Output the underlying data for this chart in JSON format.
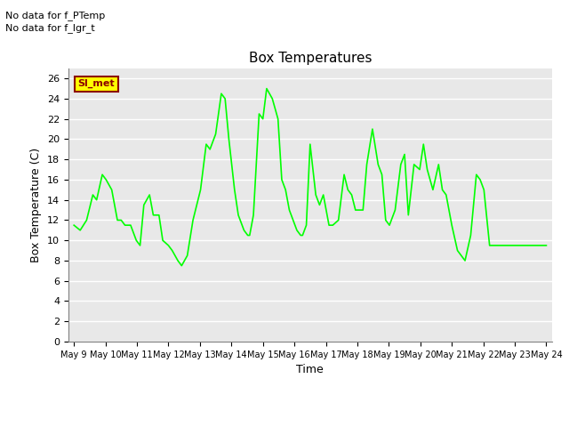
{
  "title": "Box Temperatures",
  "xlabel": "Time",
  "ylabel": "Box Temperature (C)",
  "line_color": "#00FF00",
  "bg_color": "#E8E8E8",
  "annotation1": "No data for f_PTemp",
  "annotation2": "No data for f_lgr_t",
  "sl_met_label": "Sl_met",
  "x_tick_labels": [
    "May 9",
    "May 10",
    "May 11",
    "May 12",
    "May 13",
    "May 14",
    "May 15",
    "May 16",
    "May 17",
    "May 18",
    "May 19",
    "May 20",
    "May 21",
    "May 22",
    "May 23",
    "May 24"
  ],
  "x_values": [
    0.0,
    0.33,
    0.67,
    1.0,
    1.2,
    1.5,
    1.7,
    2.0,
    2.3,
    2.5,
    2.7,
    3.0,
    3.3,
    3.5,
    3.7,
    4.0,
    4.2,
    4.5,
    4.7,
    5.0,
    5.2,
    5.5,
    5.7,
    6.0,
    6.3,
    6.7,
    7.0,
    7.2,
    7.5,
    7.8,
    8.0,
    8.2,
    8.5,
    8.7,
    9.0,
    9.2,
    9.3,
    9.5,
    9.8,
    10.0,
    10.2,
    10.5,
    10.8,
    11.0,
    11.2,
    11.4,
    11.6,
    11.8,
    12.0,
    12.1,
    12.3,
    12.5,
    12.8,
    13.0,
    13.2,
    13.5,
    13.7,
    14.0,
    14.3,
    14.5,
    14.7,
    14.9,
    15.1,
    15.3,
    15.5,
    15.8,
    16.1,
    16.3,
    16.5,
    16.7,
    17.0,
    17.3,
    17.5,
    17.7,
    18.0,
    18.3,
    18.5,
    18.7,
    19.0,
    19.3,
    19.5,
    19.7,
    20.0,
    20.3,
    20.5,
    20.7,
    21.0,
    21.3,
    21.5,
    21.7,
    22.0,
    22.3,
    22.7,
    23.0,
    23.3,
    23.7,
    24.0,
    24.3,
    24.7,
    25.0
  ],
  "y_values": [
    11.5,
    11.0,
    12.0,
    14.5,
    14.0,
    16.5,
    16.0,
    15.0,
    12.0,
    12.0,
    11.5,
    11.5,
    10.0,
    9.5,
    13.5,
    14.5,
    12.5,
    12.5,
    10.0,
    9.5,
    9.0,
    8.0,
    7.5,
    8.5,
    12.0,
    15.0,
    19.5,
    19.0,
    20.5,
    24.5,
    24.0,
    20.0,
    15.0,
    12.5,
    11.0,
    10.5,
    10.5,
    12.5,
    22.5,
    22.0,
    25.0,
    24.0,
    22.0,
    16.0,
    15.0,
    13.0,
    12.0,
    11.0,
    10.5,
    10.5,
    11.5,
    19.5,
    14.5,
    13.5,
    14.5,
    11.5,
    11.5,
    12.0,
    16.5,
    15.0,
    14.5,
    13.0,
    13.0,
    13.0,
    17.5,
    21.0,
    17.5,
    16.5,
    12.0,
    11.5,
    13.0,
    17.5,
    18.5,
    12.5,
    17.5,
    17.0,
    19.5,
    17.0,
    15.0,
    17.5,
    15.0,
    14.5,
    11.5,
    9.0,
    8.5,
    8.0,
    10.5,
    16.5,
    16.0,
    15.0,
    9.5,
    9.5,
    9.5,
    9.5,
    9.5,
    9.5,
    9.5,
    9.5,
    9.5,
    9.5
  ]
}
